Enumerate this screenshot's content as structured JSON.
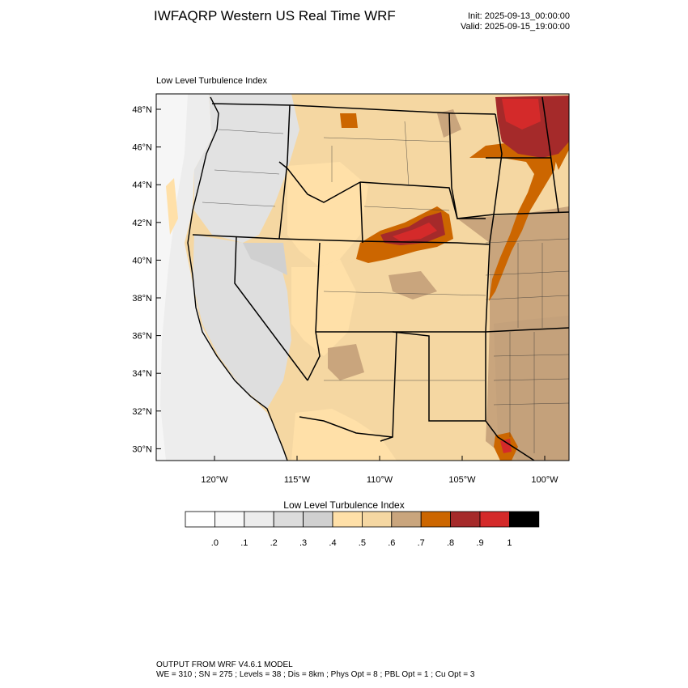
{
  "header": {
    "title": "IWFAQRP Western US Real Time WRF",
    "init": "Init: 2025-09-13_00:00:00",
    "valid": "Valid: 2025-09-15_19:00:00"
  },
  "field_title": "Low Level Turbulence Index",
  "map": {
    "lat_labels": [
      "48°N",
      "46°N",
      "44°N",
      "42°N",
      "40°N",
      "38°N",
      "36°N",
      "34°N",
      "32°N",
      "30°N"
    ],
    "lat_values": [
      48,
      46,
      44,
      42,
      40,
      38,
      36,
      34,
      32,
      30
    ],
    "lon_labels": [
      "120°W",
      "115°W",
      "110°W",
      "105°W",
      "100°W"
    ],
    "lon_values": [
      -120,
      -115,
      -110,
      -105,
      -100
    ]
  },
  "colorbar": {
    "title": "Low Level Turbulence Index",
    "colors": [
      "#ffffff",
      "#f8f8f8",
      "#ececec",
      "#dcdcdc",
      "#d0d0d0",
      "#ffe0a8",
      "#f5d7a2",
      "#c9a57d",
      "#cc6600",
      "#a52a2a",
      "#d42a2a",
      "#000000"
    ],
    "tick_labels": [
      ".0",
      ".1",
      ".2",
      ".3",
      ".4",
      ".5",
      ".6",
      ".7",
      ".8",
      ".9",
      "1"
    ]
  },
  "footer": {
    "line1": "OUTPUT FROM WRF V4.6.1 MODEL",
    "line2": "WE = 310 ; SN = 275 ; Levels = 38 ; Dis = 8km ; Phys Opt = 8 ; PBL Opt = 1 ; Cu Opt = 3"
  }
}
